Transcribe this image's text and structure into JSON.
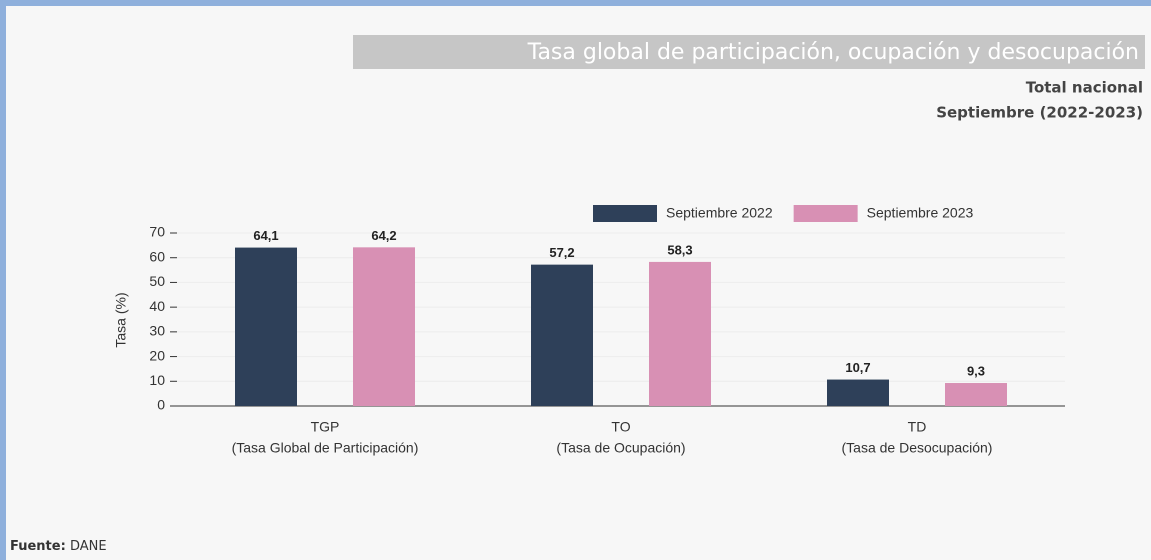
{
  "chart_data": {
    "type": "bar",
    "title": "Tasa global de participación, ocupación y desocupación",
    "subtitle": [
      "Total nacional",
      "Septiembre (2022-2023)"
    ],
    "y_label": "Tasa (%)",
    "categories": [
      [
        "TGP",
        "(Tasa Global de Participación)"
      ],
      [
        "TO",
        "(Tasa de Ocupación)"
      ],
      [
        "TD",
        "(Tasa de Desocupación)"
      ]
    ],
    "series": [
      {
        "name": "Septiembre 2022",
        "color": "#2e4059",
        "values": [
          64.1,
          57.2,
          10.7
        ],
        "value_labels": [
          "64,1",
          "57,2",
          "10,7"
        ]
      },
      {
        "name": "Septiembre 2023",
        "color": "#d890b4",
        "values": [
          64.2,
          58.3,
          9.3
        ],
        "value_labels": [
          "64,2",
          "58,3",
          "9,3"
        ]
      }
    ],
    "ylim": [
      0,
      70
    ],
    "yticks": [
      0,
      10,
      20,
      30,
      40,
      50,
      60,
      70
    ],
    "grid": true,
    "legend": "top-right"
  },
  "footer": {
    "label": "Fuente:",
    "text": "DANE"
  }
}
